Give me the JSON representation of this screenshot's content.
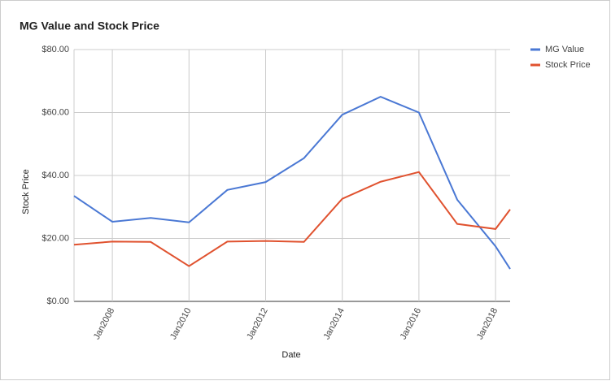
{
  "chart_data": {
    "type": "line",
    "title": "MG Value and Stock Price",
    "x_label": "Date",
    "y_label": "Stock Price",
    "x": [
      2007,
      2008,
      2009,
      2010,
      2011,
      2012,
      2013,
      2014,
      2015,
      2016,
      2017,
      2018,
      2018.38
    ],
    "series": [
      {
        "name": "MG Value",
        "color": "#4a78d4",
        "values": [
          33.5,
          25.3,
          26.5,
          25.1,
          35.4,
          37.9,
          45.5,
          59.3,
          65,
          60,
          32.3,
          17.5,
          10.3
        ]
      },
      {
        "name": "Stock Price",
        "color": "#e0522f",
        "values": [
          18,
          19,
          18.9,
          11.2,
          19,
          19.2,
          18.9,
          32.6,
          38,
          41.1,
          24.6,
          23,
          29.2
        ]
      }
    ],
    "xlim": [
      2007,
      2018.38
    ],
    "xticks": [
      {
        "value": 2008,
        "label": "Jan2008"
      },
      {
        "value": 2010,
        "label": "Jan2010"
      },
      {
        "value": 2012,
        "label": "Jan2012"
      },
      {
        "value": 2014,
        "label": "Jan2014"
      },
      {
        "value": 2016,
        "label": "Jan2016"
      },
      {
        "value": 2018,
        "label": "Jan2018"
      }
    ],
    "ylim": [
      0,
      80
    ],
    "yticks": [
      {
        "value": 0,
        "label": "$0.00"
      },
      {
        "value": 20,
        "label": "$20.00"
      },
      {
        "value": 40,
        "label": "$40.00"
      },
      {
        "value": 60,
        "label": "$60.00"
      },
      {
        "value": 80,
        "label": "$80.00"
      }
    ],
    "grid": true,
    "legend": "right"
  }
}
